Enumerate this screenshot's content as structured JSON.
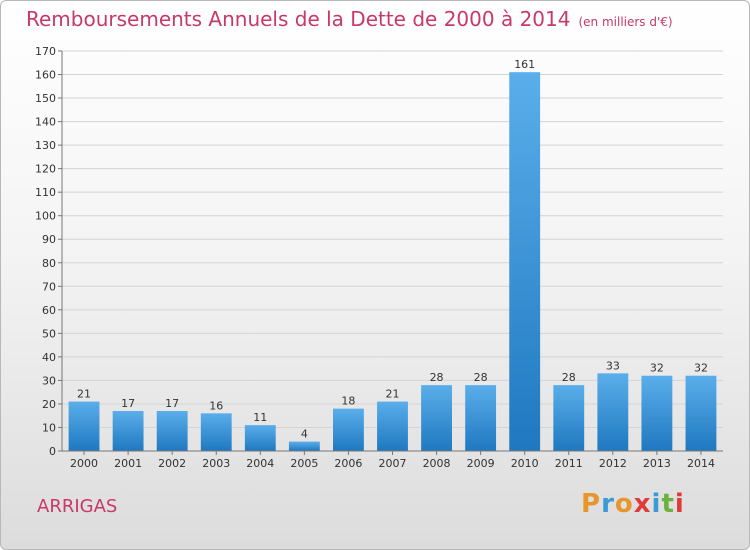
{
  "header": {
    "title": "Remboursements Annuels de la Dette de 2000 à 2014",
    "unit": "(en milliers d'€)"
  },
  "footer": {
    "commune": "ARRIGAS",
    "logo": "Proxiti"
  },
  "colors": {
    "title": "#c8386a",
    "bar_light": "#5aaeea",
    "bar_dark": "#1f78c0",
    "logo_letters": [
      "#e8962c",
      "#3a9ad6",
      "#e8962c",
      "#e03a3a",
      "#3a9ad6",
      "#6ab23c",
      "#e03a3a"
    ]
  },
  "chart_data": {
    "type": "bar",
    "title": "Remboursements Annuels de la Dette de 2000 à 2014",
    "categories": [
      "2000",
      "2001",
      "2002",
      "2003",
      "2004",
      "2005",
      "2006",
      "2007",
      "2008",
      "2009",
      "2010",
      "2011",
      "2012",
      "2013",
      "2014"
    ],
    "values": [
      21,
      17,
      17,
      16,
      11,
      4,
      18,
      21,
      28,
      28,
      161,
      28,
      33,
      32,
      32
    ],
    "ylim": [
      0,
      170
    ],
    "yticks": [
      0,
      10,
      20,
      30,
      40,
      50,
      60,
      70,
      80,
      90,
      100,
      110,
      120,
      130,
      140,
      150,
      160,
      170
    ],
    "grid": true,
    "xlabel": "",
    "ylabel": ""
  }
}
